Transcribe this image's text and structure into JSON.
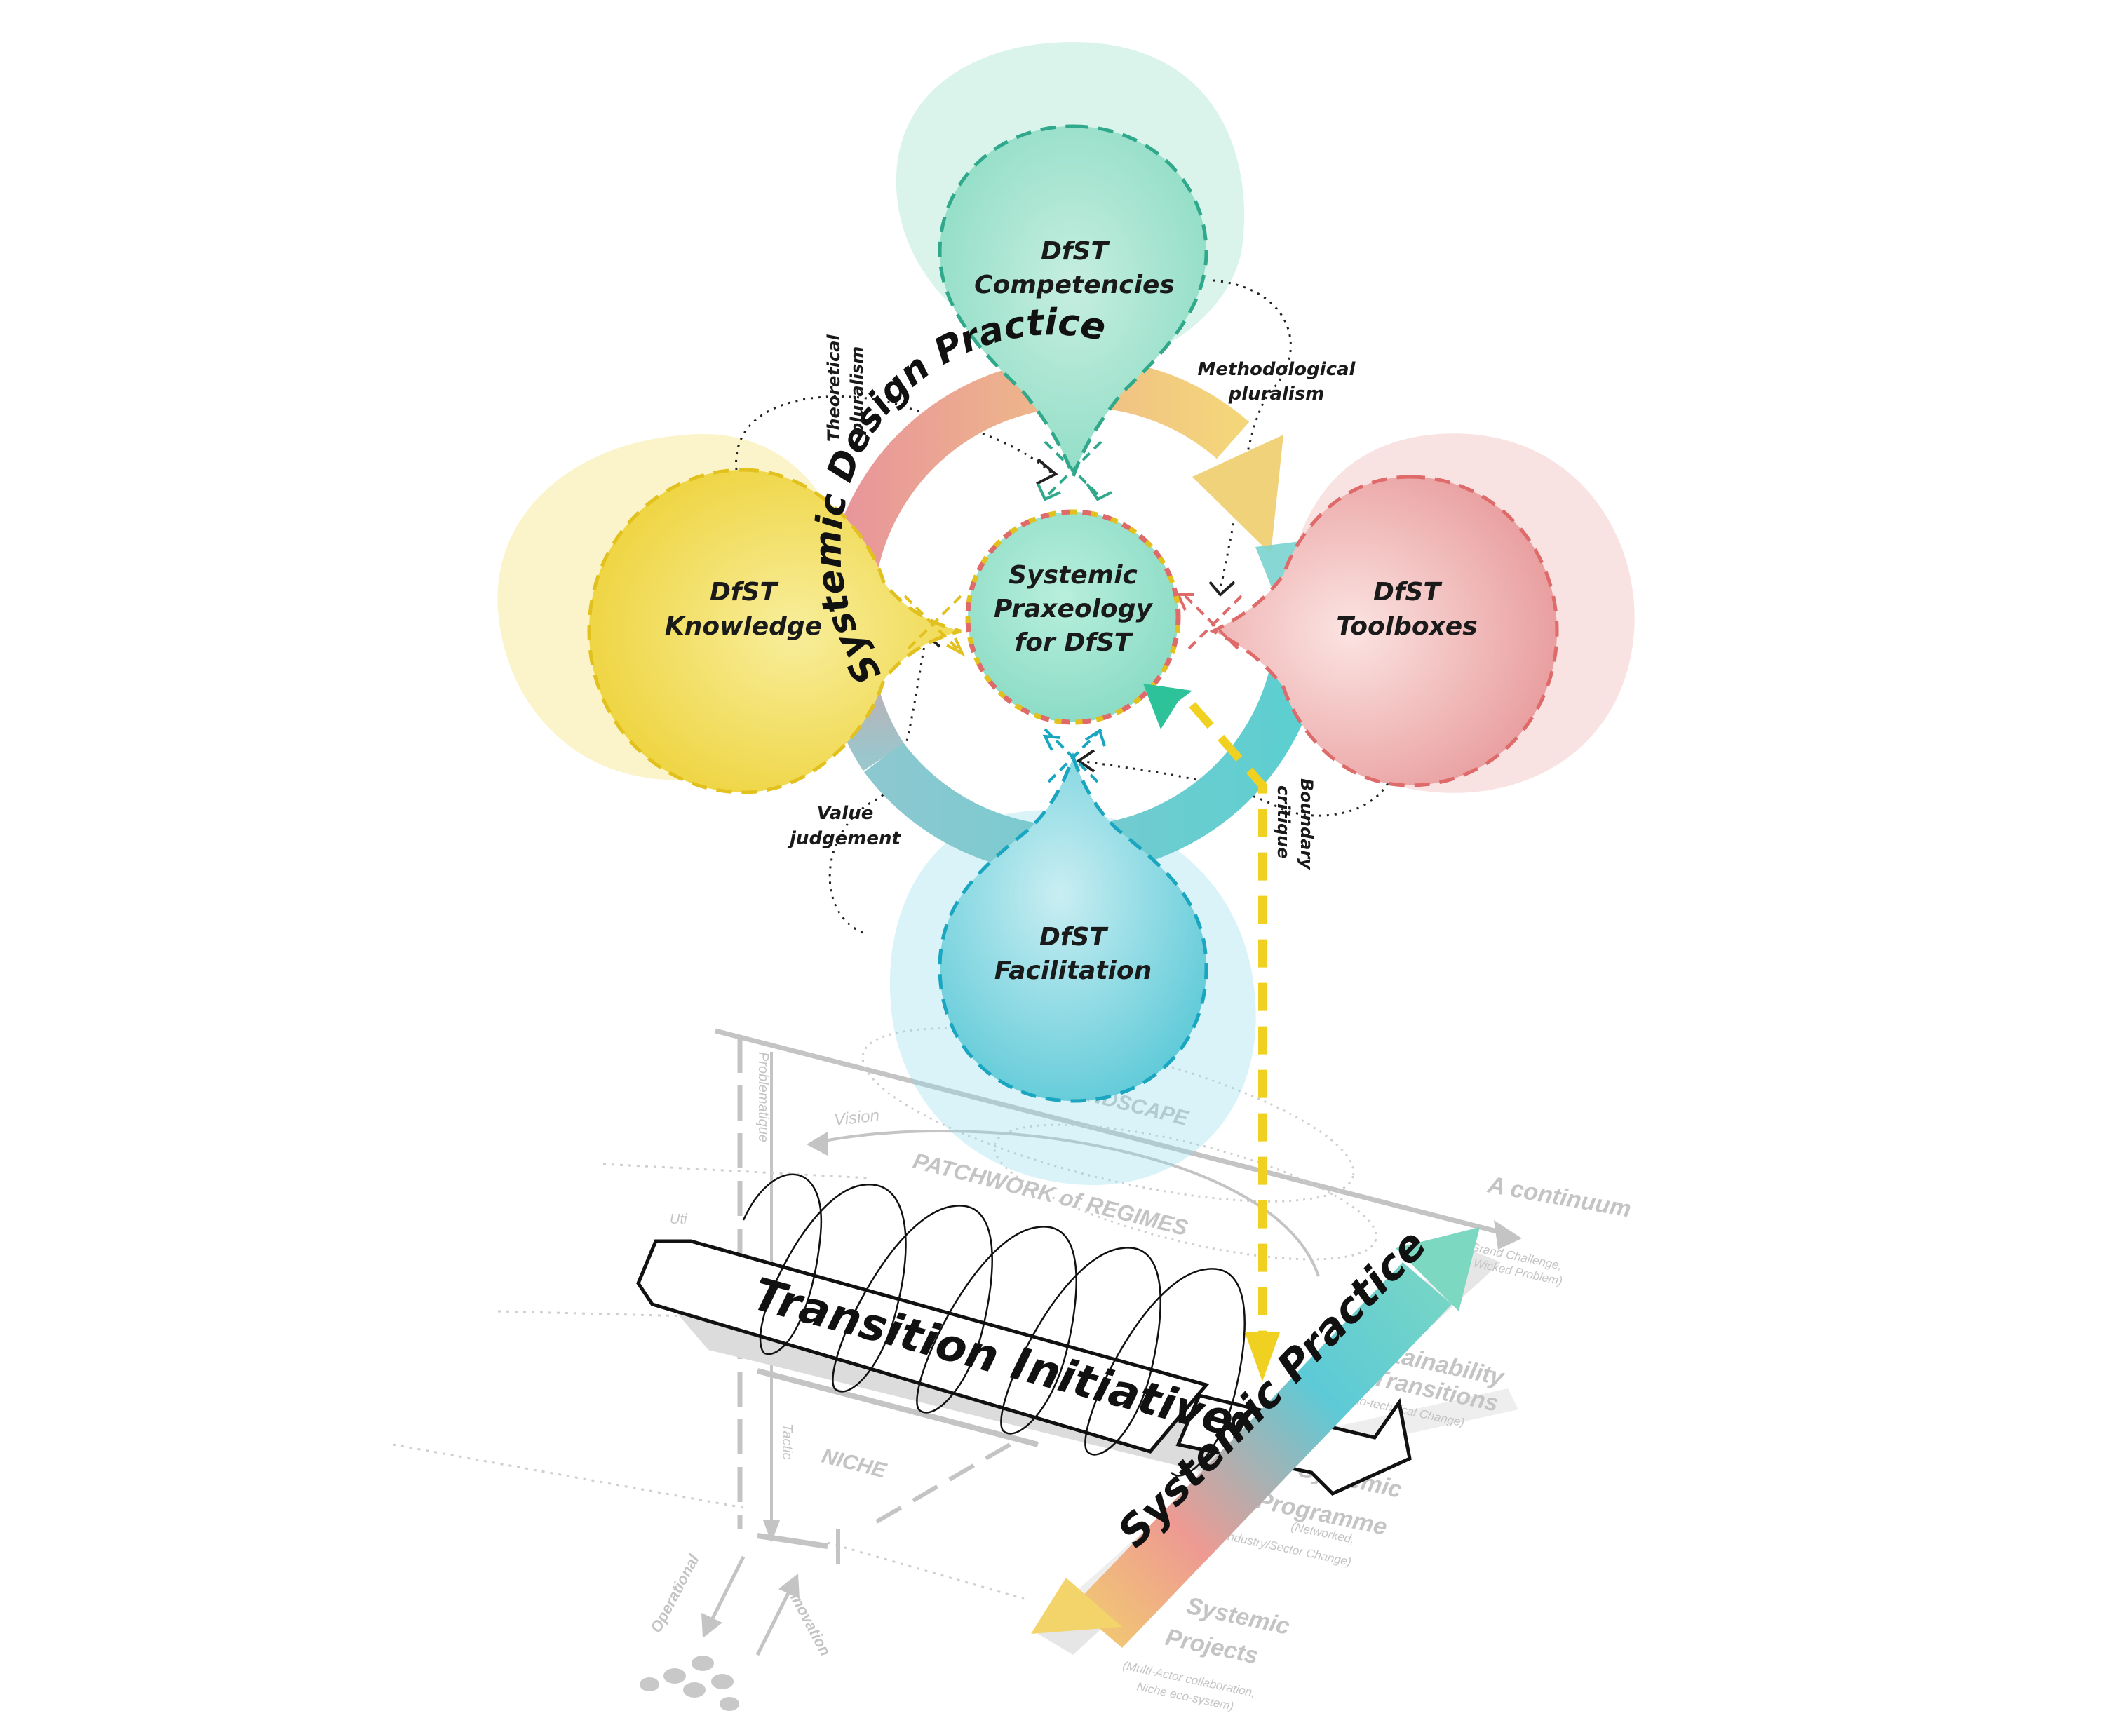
{
  "colors": {
    "competencies": "#6fd0b4",
    "knowledge": "#f2d83c",
    "toolboxes": "#e8888c",
    "facilitation": "#3fc0d4",
    "center": "#8ee0c8",
    "arrow_yellow": "#f0d020",
    "ghost": "#c4c4c4"
  },
  "nodes": {
    "competencies": {
      "line1": "DfST",
      "line2": "Competencies"
    },
    "knowledge": {
      "line1": "DfST",
      "line2": "Knowledge"
    },
    "toolboxes": {
      "line1": "DfST",
      "line2": "Toolboxes"
    },
    "facilitation": {
      "line1": "DfST",
      "line2": "Facilitation"
    },
    "center": {
      "line1": "Systemic",
      "line2": "Praxeology",
      "line3": "for DfST"
    }
  },
  "ring_label": "Systemic Design Practice",
  "annotations": {
    "theoretical": {
      "line1": "Theoretical",
      "line2": "pluralism"
    },
    "methodological": {
      "line1": "Methodological",
      "line2": "pluralism"
    },
    "value": {
      "line1": "Value",
      "line2": "judgement"
    },
    "boundary": {
      "line1": "Boundary",
      "line2": "critique"
    }
  },
  "lower": {
    "landscape": "LANDSCAPE",
    "regimes": "PATCHWORK of REGIMES",
    "niche": "NICHE",
    "vision": "Vision",
    "problematique": "Problematique",
    "tactic": "Tactic",
    "operational": "Operational",
    "innovation": "Innovation",
    "utility": "Uti",
    "continuum": "A continuum",
    "continuum_sub1": "(Grand Challenge,",
    "continuum_sub2": "Wicked Problem)",
    "sustainability_1": "Sustainability",
    "sustainability_2": "Transitions",
    "sustainability_sub": "(Socio-technical Change)",
    "programme_1": "Systemic",
    "programme_2": "Programme",
    "programme_sub1": "(Networked,",
    "programme_sub2": "Industry/Sector Change)",
    "projects_1": "Systemic",
    "projects_2": "Projects",
    "projects_sub1": "(Multi-Actor collaboration,",
    "projects_sub2": "Niche eco-system)"
  },
  "transition_label": "Transition Initiative(s)",
  "practice_label": "Systemic Practice"
}
